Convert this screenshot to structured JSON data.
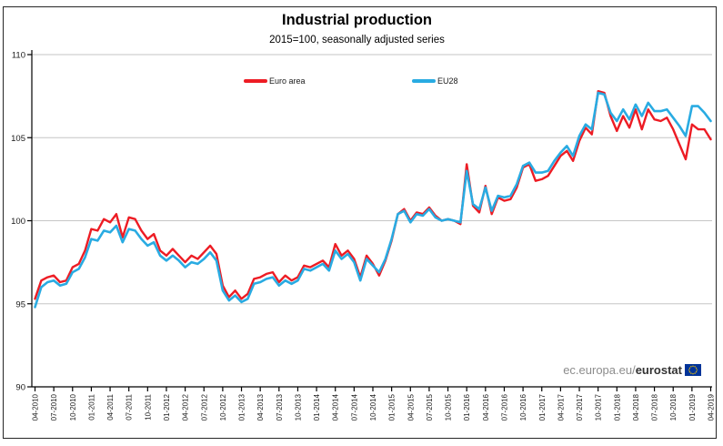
{
  "watermark": {
    "prefix": "ec.europa.eu/",
    "brand": "eurostat"
  },
  "chart_data": {
    "type": "line",
    "title": "Industrial production",
    "subtitle": "2015=100, seasonally adjusted series",
    "xlabel": "",
    "ylabel": "",
    "ylim": [
      90,
      110
    ],
    "yticks": [
      90,
      95,
      100,
      105,
      110
    ],
    "grid": "horizontal",
    "legend_position": "top-inside",
    "x_start": "04-2010",
    "x_frequency": "monthly",
    "x_tick_labels": [
      "04-2010",
      "07-2010",
      "10-2010",
      "01-2011",
      "04-2011",
      "07-2011",
      "10-2011",
      "01-2012",
      "04-2012",
      "07-2012",
      "10-2012",
      "01-2013",
      "04-2013",
      "07-2013",
      "10-2013",
      "01-2014",
      "04-2014",
      "07-2014",
      "10-2014",
      "01-2015",
      "04-2015",
      "07-2015",
      "10-2015",
      "01-2016",
      "04-2016",
      "07-2016",
      "10-2016",
      "01-2017",
      "04-2017",
      "07-2017",
      "10-2017",
      "01-2018",
      "04-2018",
      "07-2018",
      "10-2018",
      "01-2019",
      "04-2019"
    ],
    "x_tick_every_n_months": 3,
    "series": [
      {
        "name": "Euro area",
        "color": "#ED1C24",
        "values": [
          95.3,
          96.4,
          96.6,
          96.7,
          96.3,
          96.4,
          97.2,
          97.4,
          98.2,
          99.5,
          99.4,
          100.1,
          99.9,
          100.4,
          99.0,
          100.2,
          100.1,
          99.4,
          98.9,
          99.2,
          98.2,
          97.9,
          98.3,
          97.9,
          97.5,
          97.9,
          97.7,
          98.1,
          98.5,
          98.0,
          96.1,
          95.4,
          95.8,
          95.3,
          95.6,
          96.5,
          96.6,
          96.8,
          96.9,
          96.3,
          96.7,
          96.4,
          96.6,
          97.3,
          97.2,
          97.4,
          97.6,
          97.2,
          98.6,
          97.9,
          98.2,
          97.7,
          96.6,
          97.9,
          97.4,
          96.7,
          97.6,
          98.8,
          100.4,
          100.7,
          100.0,
          100.5,
          100.4,
          100.8,
          100.3,
          100.0,
          100.1,
          100.0,
          99.8,
          103.4,
          100.9,
          100.5,
          102.1,
          100.4,
          101.4,
          101.2,
          101.3,
          102.0,
          103.2,
          103.4,
          102.4,
          102.5,
          102.7,
          103.3,
          103.9,
          104.2,
          103.6,
          104.8,
          105.6,
          105.2,
          107.8,
          107.7,
          106.3,
          105.4,
          106.3,
          105.6,
          106.7,
          105.5,
          106.7,
          106.1,
          106.0,
          106.2,
          105.5,
          104.6,
          103.7,
          105.8,
          105.5,
          105.5,
          104.9
        ]
      },
      {
        "name": "EU28",
        "color": "#29ABE2",
        "values": [
          94.8,
          96.0,
          96.3,
          96.4,
          96.1,
          96.2,
          96.9,
          97.1,
          97.8,
          98.9,
          98.8,
          99.4,
          99.3,
          99.7,
          98.7,
          99.5,
          99.4,
          98.9,
          98.5,
          98.7,
          97.9,
          97.6,
          97.9,
          97.6,
          97.2,
          97.5,
          97.4,
          97.7,
          98.1,
          97.6,
          95.8,
          95.2,
          95.5,
          95.1,
          95.3,
          96.2,
          96.3,
          96.5,
          96.6,
          96.1,
          96.4,
          96.2,
          96.4,
          97.1,
          97.0,
          97.2,
          97.4,
          97.0,
          98.2,
          97.7,
          98.0,
          97.5,
          96.4,
          97.7,
          97.3,
          96.9,
          97.7,
          98.9,
          100.4,
          100.6,
          99.9,
          100.4,
          100.3,
          100.7,
          100.2,
          100.0,
          100.1,
          100.0,
          99.9,
          103.0,
          101.0,
          100.7,
          102.0,
          100.6,
          101.5,
          101.4,
          101.5,
          102.2,
          103.3,
          103.5,
          102.9,
          102.9,
          103.0,
          103.6,
          104.1,
          104.5,
          103.9,
          105.1,
          105.8,
          105.5,
          107.7,
          107.6,
          106.5,
          106.0,
          106.7,
          106.1,
          107.0,
          106.3,
          107.1,
          106.6,
          106.6,
          106.7,
          106.2,
          105.7,
          105.1,
          106.9,
          106.9,
          106.5,
          106.0
        ]
      }
    ]
  }
}
